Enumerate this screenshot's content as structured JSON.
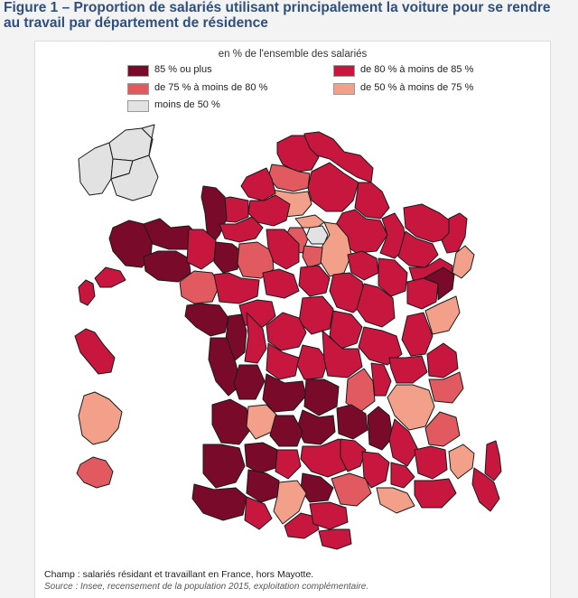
{
  "figure": {
    "title_line1": "Figure 1 – Proportion de salariés utilisant principalement la voiture pour se rendre",
    "title_line2": "au travail par département de résidence"
  },
  "legend": {
    "title": "en % de l'ensemble des salariés",
    "items": [
      {
        "label": "85 % ou plus",
        "color": "#7a0a2a"
      },
      {
        "label": "de 80 % à moins de 85 %",
        "color": "#c8173f"
      },
      {
        "label": "de 75 % à moins de 80 %",
        "color": "#e05a60"
      },
      {
        "label": "de 50 % à moins de 75 %",
        "color": "#f3a08a"
      },
      {
        "label": "moins de 50 %",
        "color": "#e2e2e2"
      }
    ]
  },
  "notes": {
    "champ": "Champ : salariés résidant et travaillant en France, hors Mayotte.",
    "source": "Source : Insee, recensement de la population 2015, exploitation complémentaire."
  }
}
